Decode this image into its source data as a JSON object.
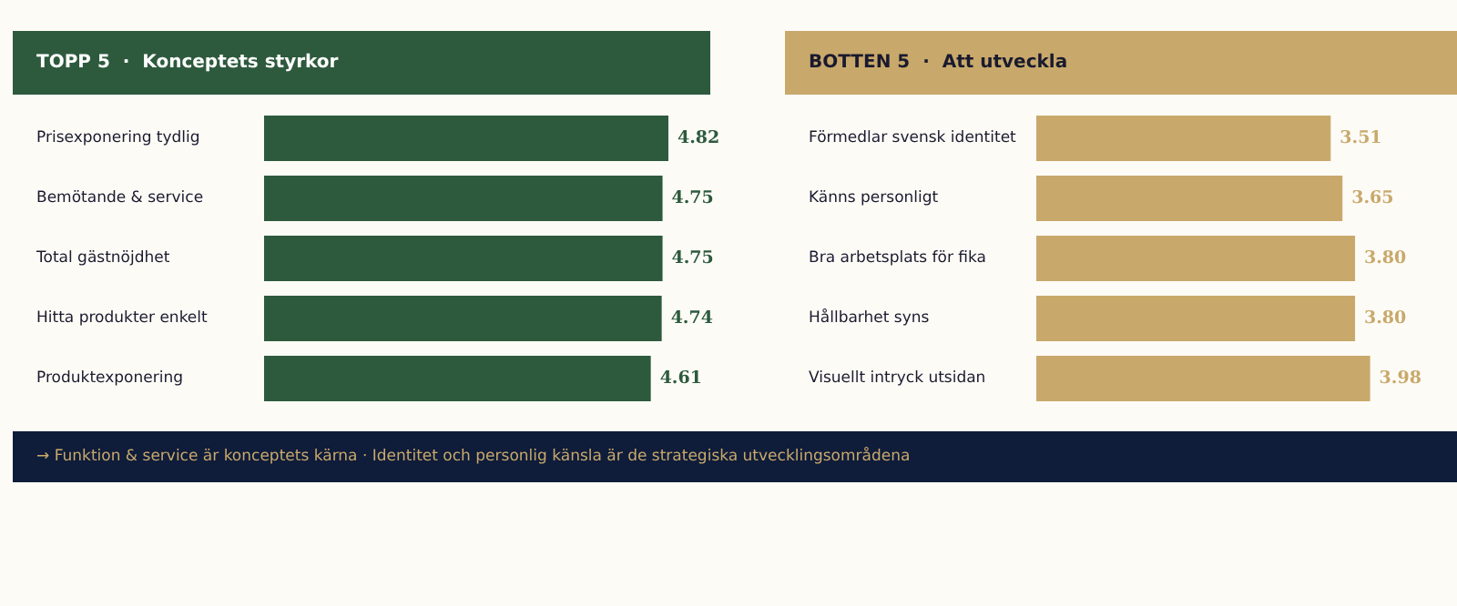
{
  "chart_data": [
    {
      "type": "bar",
      "orientation": "horizontal",
      "title": "TOPP 5  ·  Konceptets styrkor",
      "categories": [
        "Prisexponering tydlig",
        "Bemötande & service",
        "Total gästnöjdhet",
        "Hitta produkter enkelt",
        "Produktexponering"
      ],
      "values": [
        4.82,
        4.75,
        4.75,
        4.74,
        4.61
      ],
      "color": "#2d5a3d",
      "value_labels": [
        "4.82",
        "4.75",
        "4.75",
        "4.74",
        "4.61"
      ],
      "annotations": [
        "→ Funktion & service är konceptets kärna · Identitet och personlig känsla är de strategiska utvecklingsområdena"
      ]
    },
    {
      "type": "bar",
      "orientation": "horizontal",
      "title": "BOTTEN 5  ·  Att utveckla",
      "categories": [
        "Förmedlar svensk identitet",
        "Känns personligt",
        "Bra arbetsplats för fika",
        "Hållbarhet syns",
        "Visuellt intryck utsidan"
      ],
      "values": [
        3.51,
        3.65,
        3.8,
        3.8,
        3.98
      ],
      "color": "#c8a96b",
      "value_labels": [
        "3.51",
        "3.65",
        "3.80",
        "3.80",
        "3.98"
      ]
    }
  ]
}
